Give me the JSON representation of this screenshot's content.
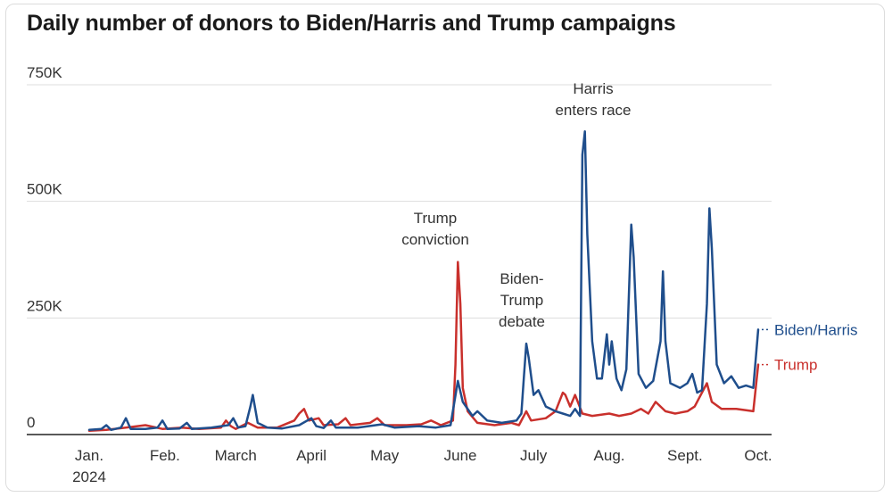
{
  "colors": {
    "biden": "#1f4e8c",
    "trump": "#c9302c",
    "grid": "#dddddd",
    "axis": "#222222"
  },
  "chart_data": {
    "type": "line",
    "title": "Daily number of donors to Biden/Harris and Trump campaigns",
    "xlabel": "",
    "ylabel": "",
    "ylim": [
      0,
      750000
    ],
    "y_ticks": [
      {
        "value": 0,
        "label": "0"
      },
      {
        "value": 250000,
        "label": "250K"
      },
      {
        "value": 500000,
        "label": "500K"
      },
      {
        "value": 750000,
        "label": "750K"
      }
    ],
    "x_ticks": [
      {
        "date": "2024-01-01",
        "label": "Jan.",
        "sublabel": "2024"
      },
      {
        "date": "2024-02-01",
        "label": "Feb."
      },
      {
        "date": "2024-03-01",
        "label": "March"
      },
      {
        "date": "2024-04-01",
        "label": "April"
      },
      {
        "date": "2024-05-01",
        "label": "May"
      },
      {
        "date": "2024-06-01",
        "label": "June"
      },
      {
        "date": "2024-07-01",
        "label": "July"
      },
      {
        "date": "2024-08-01",
        "label": "Aug."
      },
      {
        "date": "2024-09-01",
        "label": "Sept."
      },
      {
        "date": "2024-10-01",
        "label": "Oct."
      }
    ],
    "annotations": [
      {
        "date": "2024-05-31",
        "value": 370000,
        "lines": [
          "Trump",
          "conviction"
        ]
      },
      {
        "date": "2024-06-27",
        "value": 195000,
        "lines": [
          "Biden-",
          "Trump",
          "debate"
        ]
      },
      {
        "date": "2024-07-21",
        "value": 650000,
        "lines": [
          "Harris",
          "enters race"
        ]
      }
    ],
    "series": [
      {
        "name": "Biden/Harris",
        "color": "#1f4e8c",
        "points": [
          [
            "2024-01-01",
            10000
          ],
          [
            "2024-01-06",
            12000
          ],
          [
            "2024-01-08",
            20000
          ],
          [
            "2024-01-10",
            10000
          ],
          [
            "2024-01-14",
            15000
          ],
          [
            "2024-01-16",
            35000
          ],
          [
            "2024-01-18",
            12000
          ],
          [
            "2024-01-24",
            12000
          ],
          [
            "2024-01-29",
            15000
          ],
          [
            "2024-01-31",
            30000
          ],
          [
            "2024-02-02",
            12000
          ],
          [
            "2024-02-07",
            13000
          ],
          [
            "2024-02-10",
            25000
          ],
          [
            "2024-02-12",
            12000
          ],
          [
            "2024-02-20",
            15000
          ],
          [
            "2024-02-27",
            20000
          ],
          [
            "2024-02-29",
            35000
          ],
          [
            "2024-03-02",
            15000
          ],
          [
            "2024-03-05",
            18000
          ],
          [
            "2024-03-07",
            60000
          ],
          [
            "2024-03-08",
            85000
          ],
          [
            "2024-03-10",
            25000
          ],
          [
            "2024-03-14",
            15000
          ],
          [
            "2024-03-20",
            13000
          ],
          [
            "2024-03-27",
            20000
          ],
          [
            "2024-04-01",
            35000
          ],
          [
            "2024-04-03",
            18000
          ],
          [
            "2024-04-06",
            14000
          ],
          [
            "2024-04-09",
            30000
          ],
          [
            "2024-04-11",
            15000
          ],
          [
            "2024-04-20",
            15000
          ],
          [
            "2024-04-30",
            22000
          ],
          [
            "2024-05-05",
            15000
          ],
          [
            "2024-05-15",
            18000
          ],
          [
            "2024-05-22",
            15000
          ],
          [
            "2024-05-28",
            20000
          ],
          [
            "2024-05-31",
            115000
          ],
          [
            "2024-06-02",
            70000
          ],
          [
            "2024-06-06",
            40000
          ],
          [
            "2024-06-08",
            50000
          ],
          [
            "2024-06-12",
            30000
          ],
          [
            "2024-06-18",
            25000
          ],
          [
            "2024-06-24",
            30000
          ],
          [
            "2024-06-26",
            45000
          ],
          [
            "2024-06-27",
            120000
          ],
          [
            "2024-06-28",
            195000
          ],
          [
            "2024-06-29",
            165000
          ],
          [
            "2024-07-01",
            85000
          ],
          [
            "2024-07-03",
            95000
          ],
          [
            "2024-07-06",
            60000
          ],
          [
            "2024-07-10",
            50000
          ],
          [
            "2024-07-13",
            45000
          ],
          [
            "2024-07-16",
            40000
          ],
          [
            "2024-07-18",
            55000
          ],
          [
            "2024-07-20",
            40000
          ],
          [
            "2024-07-21",
            600000
          ],
          [
            "2024-07-22",
            650000
          ],
          [
            "2024-07-23",
            430000
          ],
          [
            "2024-07-25",
            200000
          ],
          [
            "2024-07-27",
            120000
          ],
          [
            "2024-07-29",
            120000
          ],
          [
            "2024-07-31",
            215000
          ],
          [
            "2024-08-01",
            150000
          ],
          [
            "2024-08-02",
            200000
          ],
          [
            "2024-08-04",
            120000
          ],
          [
            "2024-08-06",
            95000
          ],
          [
            "2024-08-08",
            140000
          ],
          [
            "2024-08-10",
            450000
          ],
          [
            "2024-08-11",
            380000
          ],
          [
            "2024-08-13",
            130000
          ],
          [
            "2024-08-16",
            100000
          ],
          [
            "2024-08-19",
            115000
          ],
          [
            "2024-08-22",
            200000
          ],
          [
            "2024-08-23",
            350000
          ],
          [
            "2024-08-24",
            200000
          ],
          [
            "2024-08-26",
            110000
          ],
          [
            "2024-08-30",
            100000
          ],
          [
            "2024-09-02",
            110000
          ],
          [
            "2024-09-04",
            130000
          ],
          [
            "2024-09-06",
            90000
          ],
          [
            "2024-09-08",
            95000
          ],
          [
            "2024-09-10",
            280000
          ],
          [
            "2024-09-11",
            485000
          ],
          [
            "2024-09-12",
            400000
          ],
          [
            "2024-09-14",
            150000
          ],
          [
            "2024-09-17",
            110000
          ],
          [
            "2024-09-20",
            125000
          ],
          [
            "2024-09-23",
            100000
          ],
          [
            "2024-09-26",
            105000
          ],
          [
            "2024-09-29",
            100000
          ],
          [
            "2024-10-01",
            225000
          ]
        ]
      },
      {
        "name": "Trump",
        "color": "#c9302c",
        "points": [
          [
            "2024-01-01",
            8000
          ],
          [
            "2024-01-08",
            10000
          ],
          [
            "2024-01-16",
            15000
          ],
          [
            "2024-01-24",
            20000
          ],
          [
            "2024-01-31",
            12000
          ],
          [
            "2024-02-08",
            15000
          ],
          [
            "2024-02-15",
            12000
          ],
          [
            "2024-02-24",
            15000
          ],
          [
            "2024-02-26",
            30000
          ],
          [
            "2024-02-28",
            18000
          ],
          [
            "2024-03-01",
            12000
          ],
          [
            "2024-03-06",
            25000
          ],
          [
            "2024-03-10",
            15000
          ],
          [
            "2024-03-18",
            15000
          ],
          [
            "2024-03-25",
            30000
          ],
          [
            "2024-03-27",
            45000
          ],
          [
            "2024-03-29",
            55000
          ],
          [
            "2024-03-31",
            30000
          ],
          [
            "2024-04-04",
            35000
          ],
          [
            "2024-04-06",
            20000
          ],
          [
            "2024-04-12",
            22000
          ],
          [
            "2024-04-15",
            35000
          ],
          [
            "2024-04-17",
            20000
          ],
          [
            "2024-04-25",
            25000
          ],
          [
            "2024-04-28",
            35000
          ],
          [
            "2024-05-01",
            20000
          ],
          [
            "2024-05-10",
            20000
          ],
          [
            "2024-05-16",
            22000
          ],
          [
            "2024-05-20",
            30000
          ],
          [
            "2024-05-24",
            20000
          ],
          [
            "2024-05-29",
            30000
          ],
          [
            "2024-05-30",
            150000
          ],
          [
            "2024-05-31",
            370000
          ],
          [
            "2024-06-01",
            280000
          ],
          [
            "2024-06-02",
            100000
          ],
          [
            "2024-06-04",
            50000
          ],
          [
            "2024-06-08",
            25000
          ],
          [
            "2024-06-15",
            20000
          ],
          [
            "2024-06-22",
            25000
          ],
          [
            "2024-06-25",
            20000
          ],
          [
            "2024-06-28",
            50000
          ],
          [
            "2024-06-30",
            30000
          ],
          [
            "2024-07-06",
            35000
          ],
          [
            "2024-07-10",
            50000
          ],
          [
            "2024-07-13",
            90000
          ],
          [
            "2024-07-14",
            85000
          ],
          [
            "2024-07-16",
            60000
          ],
          [
            "2024-07-18",
            85000
          ],
          [
            "2024-07-21",
            45000
          ],
          [
            "2024-07-25",
            40000
          ],
          [
            "2024-08-01",
            45000
          ],
          [
            "2024-08-05",
            40000
          ],
          [
            "2024-08-10",
            45000
          ],
          [
            "2024-08-14",
            55000
          ],
          [
            "2024-08-17",
            45000
          ],
          [
            "2024-08-20",
            70000
          ],
          [
            "2024-08-24",
            50000
          ],
          [
            "2024-08-28",
            45000
          ],
          [
            "2024-09-02",
            50000
          ],
          [
            "2024-09-05",
            60000
          ],
          [
            "2024-09-10",
            110000
          ],
          [
            "2024-09-12",
            70000
          ],
          [
            "2024-09-16",
            55000
          ],
          [
            "2024-09-22",
            55000
          ],
          [
            "2024-09-29",
            50000
          ],
          [
            "2024-10-01",
            150000
          ]
        ]
      }
    ]
  }
}
